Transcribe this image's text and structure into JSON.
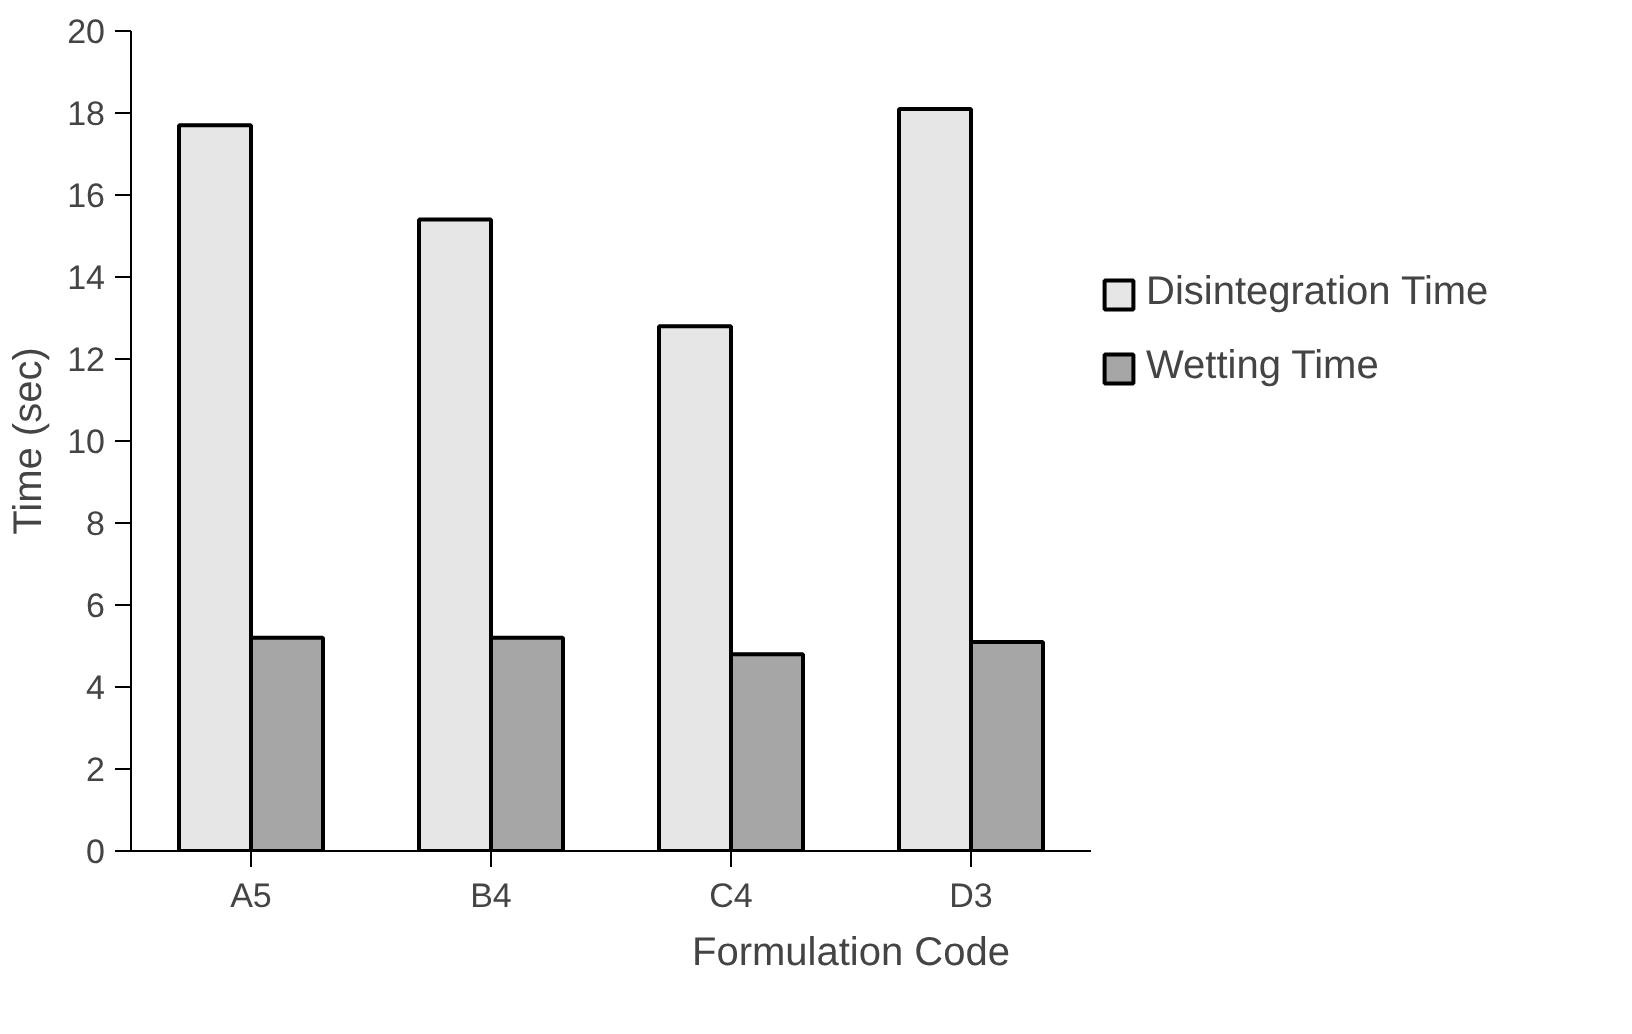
{
  "chart_data": {
    "type": "bar",
    "xlabel": "Formulation Code",
    "ylabel": "Time (sec)",
    "categories": [
      "A5",
      "B4",
      "C4",
      "D3"
    ],
    "series": [
      {
        "name": "Disintegration Time",
        "color": "#e6e6e6",
        "values": [
          17.7,
          15.4,
          12.8,
          18.1
        ]
      },
      {
        "name": "Wetting Time",
        "color": "#a6a6a6",
        "values": [
          5.2,
          5.2,
          4.8,
          5.1
        ]
      }
    ],
    "ylim": [
      0,
      20
    ],
    "yticks": [
      0,
      2,
      4,
      6,
      8,
      10,
      12,
      14,
      16,
      18,
      20
    ],
    "grid": false,
    "legend": "right"
  }
}
